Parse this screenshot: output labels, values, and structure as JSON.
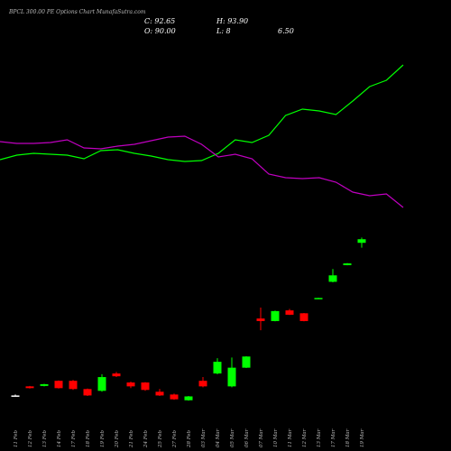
{
  "chart_data": {
    "type": "candlestick",
    "title": "BPCL 300.00 PE Options Chart MunafaSutra.com",
    "info": [
      "C: 92.65",
      "H: 93.90",
      "O: 90.00",
      "L: 8",
      "6.50"
    ],
    "categories": [
      "11 Feb",
      "12 Feb",
      "13 Feb",
      "14 Feb",
      "17 Feb",
      "18 Feb",
      "19 Feb",
      "20 Feb",
      "21 Feb",
      "24 Feb",
      "25 Feb",
      "27 Feb",
      "28 Feb",
      "03 Mar",
      "04 Mar",
      "05 Mar",
      "06 Mar",
      "07 Mar",
      "10 Mar",
      "11 Mar",
      "12 Mar",
      "13 Mar",
      "17 Mar",
      "18 Mar",
      "19 Mar"
    ],
    "open": [
      26.4,
      28.4,
      28.5,
      29.7,
      29.7,
      27.8,
      27.4,
      31.5,
      29.3,
      29.3,
      27.2,
      26.6,
      25.4,
      29.7,
      31.5,
      28.4,
      33.0,
      49.0,
      48.0,
      52.3,
      51.1,
      57.4,
      65.8,
      75.2,
      90.0
    ],
    "high": [
      26.6,
      28.5,
      29.0,
      29.8,
      29.9,
      27.9,
      31.3,
      31.9,
      29.5,
      29.4,
      27.8,
      26.8,
      26.3,
      30.6,
      35.6,
      35.8,
      36.2,
      53.5,
      52.2,
      52.9,
      51.2,
      57.9,
      72.9,
      76.5,
      93.9
    ],
    "low": [
      26.3,
      27.9,
      28.4,
      27.9,
      27.6,
      26.3,
      27.2,
      30.6,
      28.0,
      27.4,
      26.3,
      25.5,
      25.3,
      28.2,
      31.3,
      28.2,
      32.9,
      44.6,
      47.9,
      50.4,
      47.9,
      57.3,
      65.5,
      75.1,
      86.5
    ],
    "close": [
      26.4,
      28.0,
      28.9,
      28.0,
      27.8,
      26.4,
      30.6,
      30.8,
      28.4,
      27.6,
      26.4,
      25.6,
      26.2,
      28.4,
      34.6,
      33.0,
      36.1,
      48.0,
      52.0,
      50.5,
      48.0,
      57.8,
      69.3,
      76.3,
      92.65
    ],
    "log": true,
    "ylim": [
      21,
      410
    ],
    "colors": {
      "up": "#00ff00",
      "down": "#ff0000",
      "flat": "#ffffff"
    },
    "y2lim": [
      0,
      500
    ],
    "lines": [
      {
        "color": "#00ff00",
        "axis": "y2",
        "values": [
          323,
          328,
          330,
          329,
          328,
          324,
          333,
          334,
          330,
          327,
          323,
          321,
          322,
          330,
          345,
          342,
          350,
          372,
          379,
          377,
          373,
          388,
          404,
          411,
          428
        ]
      },
      {
        "color": "#c000c0",
        "axis": "y2",
        "values": [
          343,
          341,
          341,
          342,
          345,
          336,
          335,
          338,
          340,
          344,
          348,
          349,
          340,
          326,
          329,
          324,
          307,
          303,
          302,
          303,
          298,
          287,
          283,
          285,
          270
        ]
      }
    ]
  }
}
